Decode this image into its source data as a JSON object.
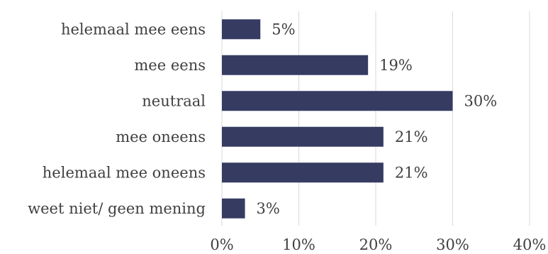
{
  "chart_data": {
    "type": "bar",
    "orientation": "horizontal",
    "categories": [
      "helemaal mee eens",
      "mee eens",
      "neutraal",
      "mee oneens",
      "helemaal mee oneens",
      "weet niet/ geen mening"
    ],
    "values": [
      5,
      19,
      30,
      21,
      21,
      3
    ],
    "value_labels": [
      "5%",
      "19%",
      "30%",
      "21%",
      "21%",
      "3%"
    ],
    "xlim": [
      0,
      40
    ],
    "xticks": [
      0,
      10,
      20,
      30,
      40
    ],
    "xtick_labels": [
      "0%",
      "10%",
      "20%",
      "30%",
      "40%"
    ],
    "grid": "vertical",
    "legend": "none",
    "bar_color": "#363B62",
    "grid_color": "#D9D9D9",
    "text_color": "#404040"
  }
}
